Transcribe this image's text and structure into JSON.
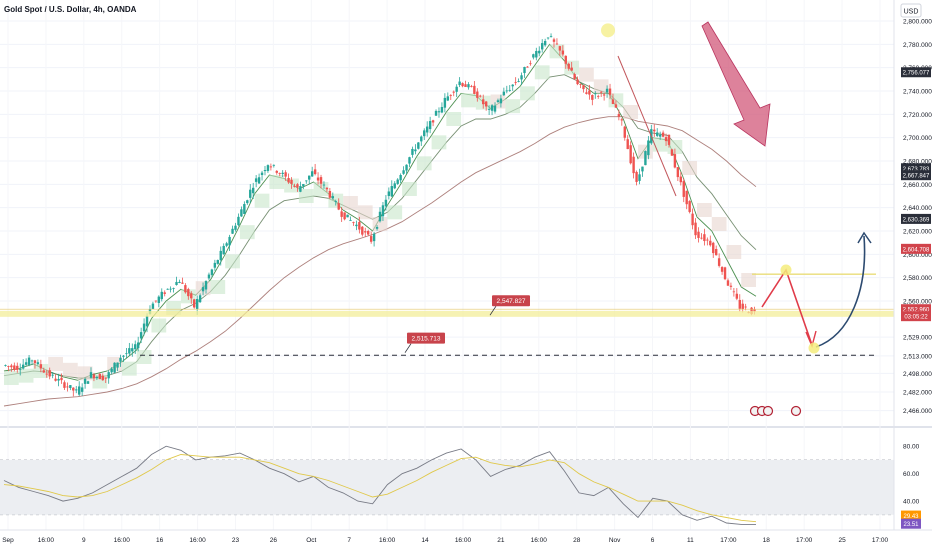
{
  "header": {
    "symbol_title": "Gold Spot / U.S. Dollar, 4h, OANDA",
    "currency_button": "USD"
  },
  "chart_data": [
    {
      "type": "line",
      "title": "Gold Spot / U.S. Dollar, 4h, OANDA",
      "xlabel": "",
      "ylabel": "",
      "ylim": [
        2458,
        2818
      ],
      "y_ticks": [
        2466,
        2482,
        2498,
        2513,
        2529,
        2560,
        2580,
        2600,
        2620,
        2640,
        2660,
        2680,
        2700,
        2720,
        2740,
        2760,
        2780,
        2800
      ],
      "y_tick_labels": [
        "2,466.000",
        "2,482.000",
        "2,498.000",
        "2,513.000",
        "2,529.000",
        "2,560.000",
        "2,580.000",
        "2,600.000",
        "2,620.000",
        "2,640.000",
        "2,660.000",
        "2,680.000",
        "2,700.000",
        "2,720.000",
        "2,740.000",
        "2,760.000",
        "2,780.000",
        "2,800.000"
      ],
      "x_tick_labels": [
        "Sep",
        "16:00",
        "9",
        "16:00",
        "16",
        "16:00",
        "23",
        "26",
        "Oct",
        "7",
        "16:00",
        "14",
        "16:00",
        "21",
        "16:00",
        "28",
        "Nov",
        "6",
        "11",
        "17:00",
        "18",
        "17:00",
        "25",
        "17:00"
      ],
      "price_points": [
        2505,
        2503,
        2510,
        2498,
        2490,
        2482,
        2497,
        2494,
        2512,
        2520,
        2555,
        2568,
        2578,
        2555,
        2582,
        2605,
        2632,
        2660,
        2678,
        2668,
        2656,
        2670,
        2655,
        2635,
        2625,
        2612,
        2648,
        2670,
        2692,
        2712,
        2732,
        2748,
        2740,
        2722,
        2738,
        2750,
        2770,
        2788,
        2770,
        2745,
        2735,
        2740,
        2712,
        2660,
        2705,
        2700,
        2660,
        2618,
        2610,
        2580,
        2555,
        2550
      ],
      "series": [
        {
          "name": "",
          "kind": "ma-fast",
          "values": [
            2500,
            2502,
            2506,
            2500,
            2495,
            2492,
            2497,
            2500,
            2508,
            2518,
            2545,
            2560,
            2570,
            2565,
            2578,
            2600,
            2625,
            2652,
            2668,
            2665,
            2656,
            2662,
            2652,
            2638,
            2630,
            2620,
            2642,
            2662,
            2684,
            2702,
            2722,
            2738,
            2736,
            2725,
            2733,
            2744,
            2762,
            2780,
            2766,
            2748,
            2738,
            2738,
            2716,
            2682,
            2700,
            2698,
            2668,
            2632,
            2620,
            2596,
            2572,
            2564
          ]
        },
        {
          "name": "",
          "kind": "ma-mid",
          "values": [
            2496,
            2498,
            2500,
            2499,
            2496,
            2494,
            2494,
            2496,
            2500,
            2508,
            2525,
            2540,
            2552,
            2558,
            2568,
            2582,
            2600,
            2620,
            2638,
            2646,
            2648,
            2650,
            2648,
            2642,
            2636,
            2630,
            2636,
            2648,
            2664,
            2680,
            2696,
            2710,
            2716,
            2716,
            2720,
            2726,
            2738,
            2752,
            2754,
            2748,
            2742,
            2738,
            2726,
            2708,
            2704,
            2702,
            2688,
            2666,
            2652,
            2634,
            2616,
            2604
          ]
        },
        {
          "name": "",
          "kind": "ma-slow",
          "values": [
            2470,
            2472,
            2474,
            2476,
            2477,
            2478,
            2480,
            2482,
            2485,
            2489,
            2495,
            2502,
            2510,
            2517,
            2525,
            2534,
            2545,
            2557,
            2569,
            2580,
            2589,
            2597,
            2604,
            2609,
            2613,
            2617,
            2622,
            2628,
            2636,
            2644,
            2653,
            2662,
            2670,
            2676,
            2682,
            2688,
            2695,
            2703,
            2709,
            2713,
            2716,
            2718,
            2718,
            2714,
            2712,
            2710,
            2706,
            2698,
            2690,
            2680,
            2668,
            2658
          ]
        }
      ],
      "price_labels": [
        {
          "text": "2,756.077",
          "value": 2756.077,
          "color": "#2a2e39"
        },
        {
          "text": "2,673.783",
          "value": 2673.783,
          "color": "#2a2e39"
        },
        {
          "text": "2,667.847",
          "value": 2667.847,
          "color": "#2a2e39"
        },
        {
          "text": "2,630.369",
          "value": 2630.369,
          "color": "#2a2e39"
        },
        {
          "text": "2,604.708",
          "value": 2604.708,
          "color": "#d1434b"
        },
        {
          "text": "2,552.960",
          "value": 2552.96,
          "color": "#d1434b"
        },
        {
          "text": "03:05:22",
          "value": 2547,
          "color": "#d1434b"
        }
      ],
      "annotations": [
        {
          "kind": "level-callout",
          "text": "2,547.827",
          "value": 2547.827
        },
        {
          "kind": "level-callout",
          "text": "2,515.713",
          "value": 2515.713
        },
        {
          "kind": "arrow-down",
          "color": "#d2587a"
        },
        {
          "kind": "projection-path",
          "color": "#e03b49"
        },
        {
          "kind": "projection-curve",
          "color": "#2c4a70"
        }
      ],
      "grid": true,
      "legend": "none"
    },
    {
      "type": "line",
      "title": "",
      "xlabel": "",
      "ylabel": "",
      "ylim": [
        16,
        86
      ],
      "y_ticks": [
        80,
        60,
        40
      ],
      "y_tick_labels": [
        "80.00",
        "60.00",
        "40.00"
      ],
      "overbought": 70,
      "oversold": 30,
      "series": [
        {
          "name": "",
          "kind": "rsi",
          "values": [
            55,
            50,
            47,
            44,
            40,
            42,
            46,
            52,
            58,
            64,
            74,
            80,
            77,
            70,
            72,
            73,
            75,
            70,
            64,
            60,
            54,
            58,
            50,
            46,
            40,
            38,
            52,
            60,
            64,
            70,
            75,
            78,
            70,
            58,
            63,
            66,
            72,
            76,
            62,
            46,
            44,
            50,
            38,
            28,
            42,
            40,
            30,
            26,
            29,
            24,
            23,
            23
          ]
        },
        {
          "name": "",
          "kind": "rsi-ma",
          "values": [
            52,
            51,
            49,
            47,
            44,
            43,
            44,
            47,
            52,
            57,
            63,
            70,
            74,
            73,
            72,
            72,
            72,
            70,
            68,
            64,
            60,
            58,
            55,
            51,
            47,
            43,
            45,
            50,
            55,
            61,
            66,
            71,
            72,
            68,
            66,
            65,
            67,
            70,
            68,
            60,
            54,
            50,
            45,
            40,
            40,
            40,
            37,
            33,
            30,
            28,
            26,
            25
          ]
        }
      ],
      "value_labels": [
        {
          "text": "29.43",
          "value": 29.43,
          "color": "#ff9800"
        },
        {
          "text": "23.51",
          "value": 23.51,
          "color": "#7e57c2"
        }
      ],
      "grid": true,
      "legend": "none"
    }
  ],
  "colors": {
    "candle_up": "#26a69a",
    "candle_down": "#ef5350",
    "ma_fast": "#2e7d32",
    "ma_mid": "#607d5b",
    "ma_slow": "#a06b66",
    "arrow": "#d2587a",
    "projection": "#e03b49",
    "curve": "#2c4a70",
    "level_band": "#f3ee9a"
  }
}
